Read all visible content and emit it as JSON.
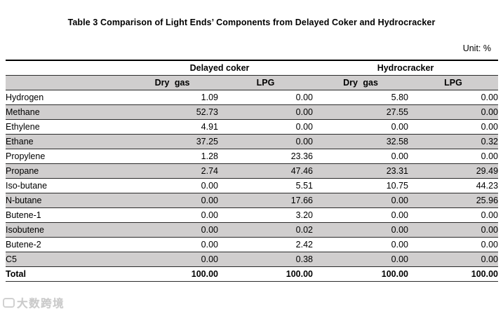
{
  "title": "Table 3 Comparison of Light Ends’ Components from Delayed Coker and Hydrocracker",
  "unit_label": "Unit: %",
  "table": {
    "group_headers": [
      "Delayed coker",
      "Hydrocracker"
    ],
    "sub_headers": [
      "Dry gas",
      "LPG",
      "Dry gas",
      "LPG"
    ],
    "rows": [
      {
        "component": "Hydrogen",
        "values": [
          "1.09",
          "0.00",
          "5.80",
          "0.00"
        ]
      },
      {
        "component": "Methane",
        "values": [
          "52.73",
          "0.00",
          "27.55",
          "0.00"
        ]
      },
      {
        "component": "Ethylene",
        "values": [
          "4.91",
          "0.00",
          "0.00",
          "0.00"
        ]
      },
      {
        "component": "Ethane",
        "values": [
          "37.25",
          "0.00",
          "32.58",
          "0.32"
        ]
      },
      {
        "component": "Propylene",
        "values": [
          "1.28",
          "23.36",
          "0.00",
          "0.00"
        ]
      },
      {
        "component": "Propane",
        "values": [
          "2.74",
          "47.46",
          "23.31",
          "29.49"
        ]
      },
      {
        "component": "Iso-butane",
        "values": [
          "0.00",
          "5.51",
          "10.75",
          "44.23"
        ]
      },
      {
        "component": "N-butane",
        "values": [
          "0.00",
          "17.66",
          "0.00",
          "25.96"
        ]
      },
      {
        "component": "Butene-1",
        "values": [
          "0.00",
          "3.20",
          "0.00",
          "0.00"
        ]
      },
      {
        "component": "Isobutene",
        "values": [
          "0.00",
          "0.02",
          "0.00",
          "0.00"
        ]
      },
      {
        "component": "Butene-2",
        "values": [
          "0.00",
          "2.42",
          "0.00",
          "0.00"
        ]
      },
      {
        "component": "C5",
        "values": [
          "0.00",
          "0.38",
          "0.00",
          "0.00"
        ]
      }
    ],
    "total_row": {
      "component": "Total",
      "values": [
        "100.00",
        "100.00",
        "100.00",
        "100.00"
      ]
    }
  },
  "watermark": {
    "text": "大数跨境"
  },
  "colors": {
    "row_alt_bg": "#d0cece",
    "header_bg": "#d0cece",
    "border": "#000000",
    "watermark": "#bdbdbd"
  }
}
